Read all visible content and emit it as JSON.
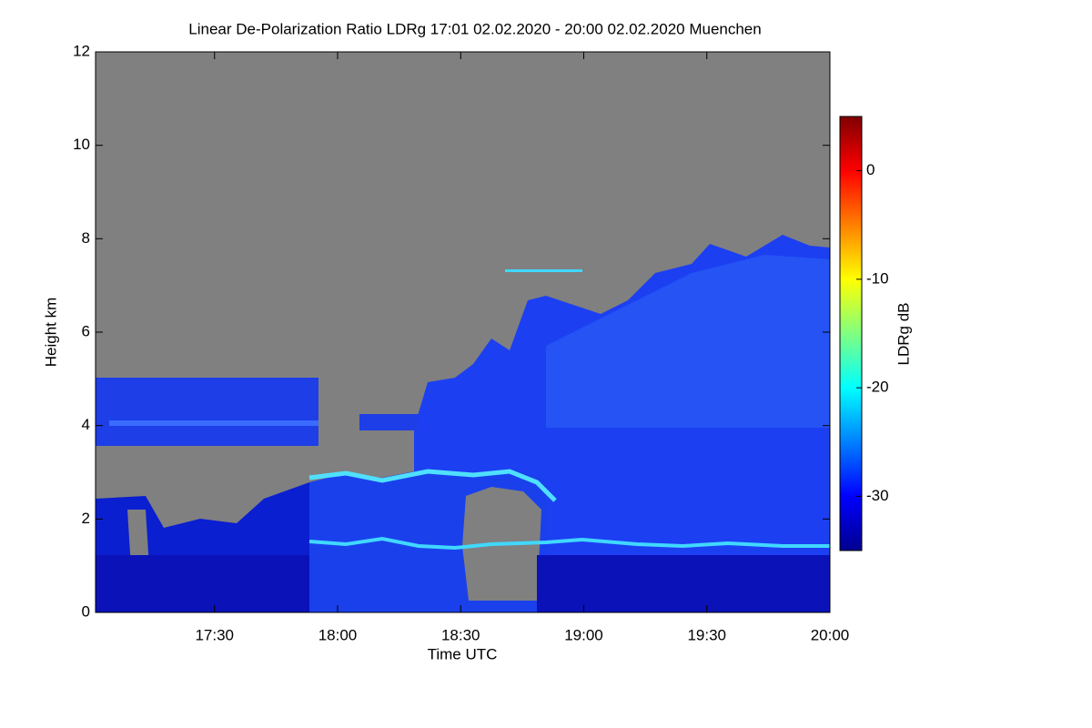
{
  "chart_data": {
    "type": "heatmap",
    "title": "Linear De-Polarization Ratio LDRg   17:01 02.02.2020 - 20:00 02.02.2020 Muenchen",
    "x_label": "Time UTC",
    "y_label": "Height km",
    "colorbar_label": "LDRg dB",
    "xlim": [
      1021,
      1200
    ],
    "xticks": [
      {
        "value": 1050,
        "label": "17:30"
      },
      {
        "value": 1080,
        "label": "18:00"
      },
      {
        "value": 1110,
        "label": "18:30"
      },
      {
        "value": 1140,
        "label": "19:00"
      },
      {
        "value": 1170,
        "label": "19:30"
      },
      {
        "value": 1200,
        "label": "20:00"
      }
    ],
    "ylim": [
      0,
      12
    ],
    "yticks": [
      0,
      2,
      4,
      6,
      8,
      10,
      12
    ],
    "clim": [
      -35,
      5
    ],
    "cticks": [
      0,
      -10,
      -20,
      -30
    ],
    "colormap": [
      "#00008f",
      "#0000ff",
      "#0080ff",
      "#00ffff",
      "#80ff80",
      "#ffff00",
      "#ff8000",
      "#ff0000",
      "#800000"
    ],
    "background_color": "#808080"
  }
}
